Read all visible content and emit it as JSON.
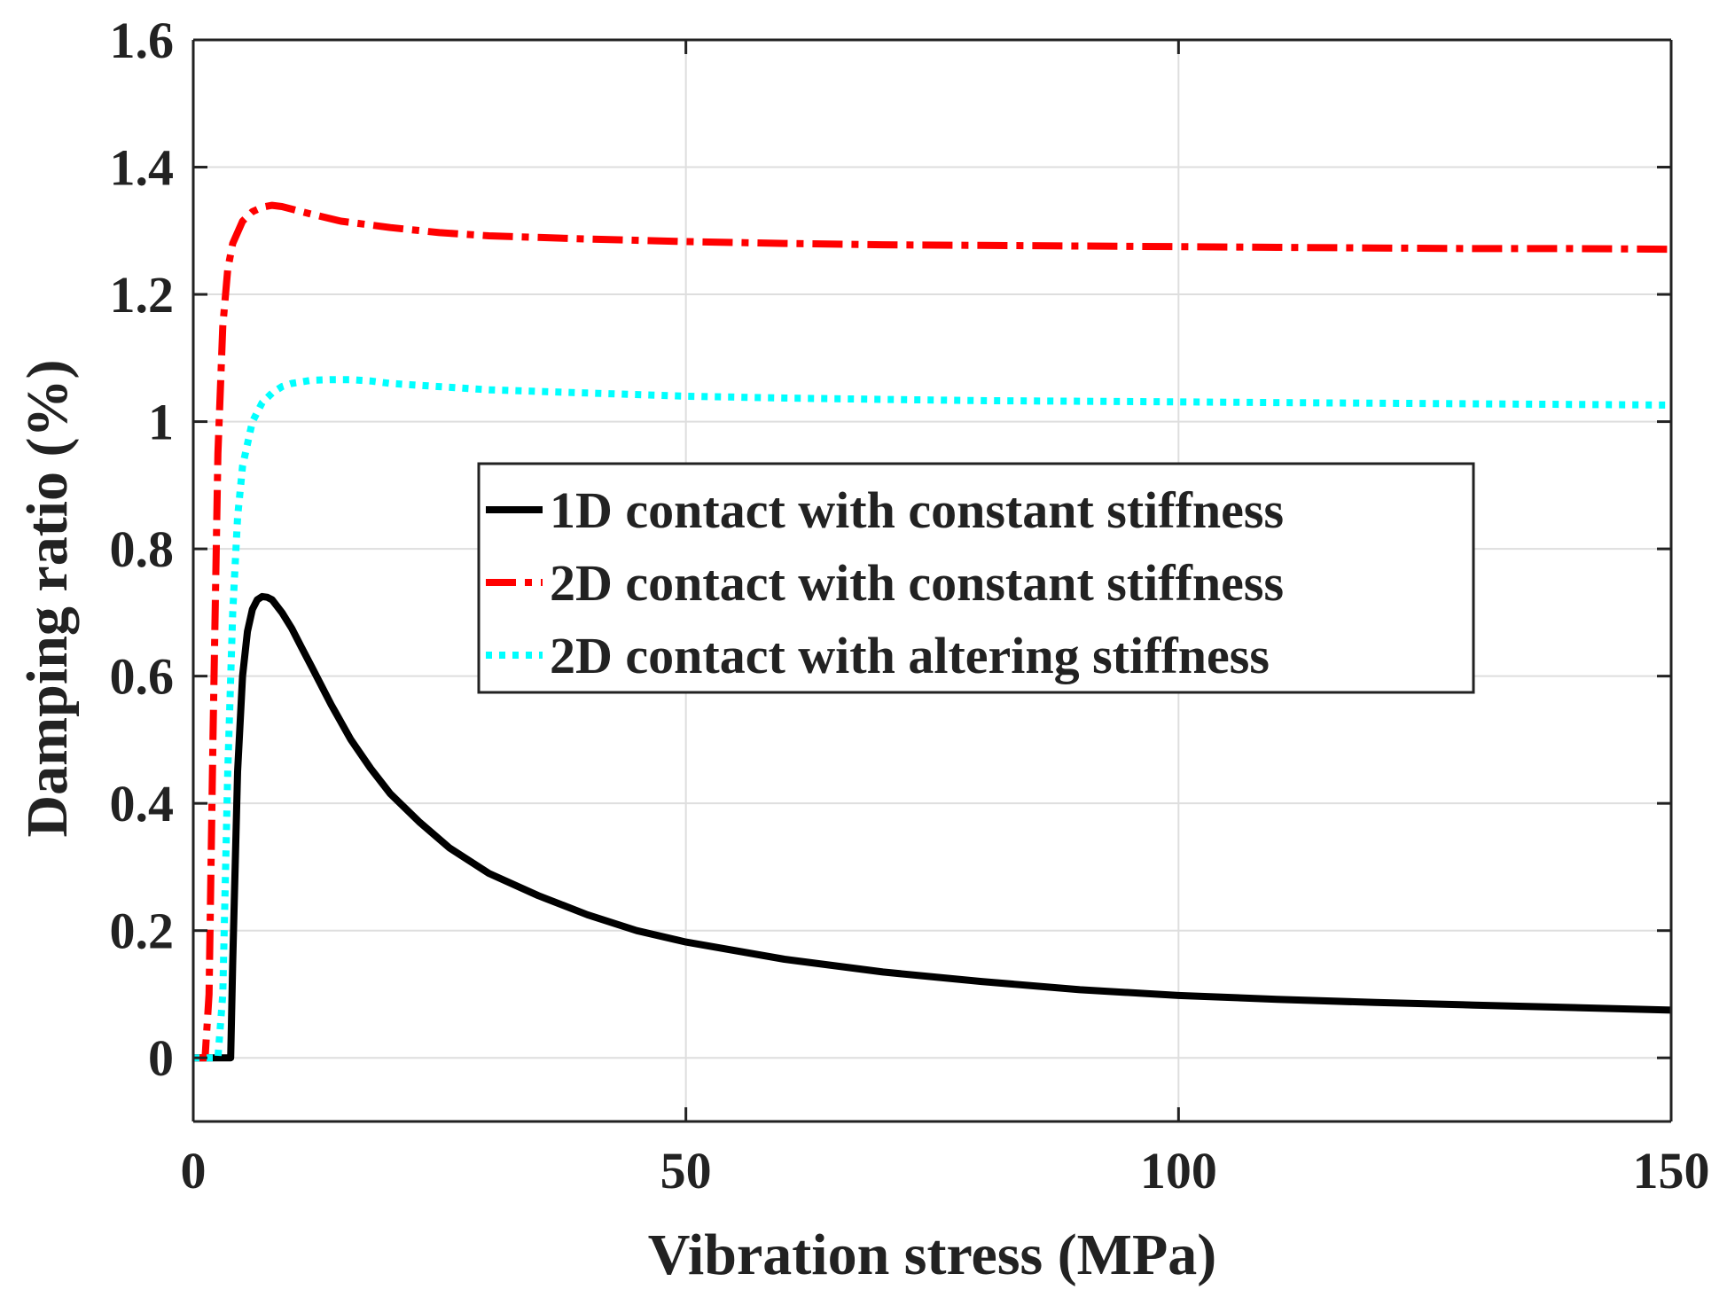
{
  "chart_data": {
    "type": "line",
    "title": "",
    "xlabel": "Vibration stress (MPa)",
    "ylabel": "Damping ratio (%)",
    "xlim": [
      0,
      150
    ],
    "ylim": [
      -0.1,
      1.6
    ],
    "xticks": [
      0,
      50,
      100,
      150
    ],
    "xtick_labels": [
      "0",
      "50",
      "100",
      "150"
    ],
    "yticks": [
      0,
      0.2,
      0.4,
      0.6,
      0.8,
      1,
      1.2,
      1.4,
      1.6
    ],
    "ytick_labels": [
      "0",
      "0.2",
      "0.4",
      "0.6",
      "0.8",
      "1",
      "1.2",
      "1.4",
      "1.6"
    ],
    "grid": true,
    "legend_position": "center-right",
    "series": [
      {
        "name": "1D contact with constant stiffness",
        "color": "#000000",
        "style": "solid",
        "x": [
          0,
          3.8,
          4.0,
          4.5,
          5.0,
          5.5,
          6.0,
          6.5,
          7.0,
          7.5,
          8.0,
          9.0,
          10,
          11,
          12,
          14,
          16,
          18,
          20,
          23,
          26,
          30,
          35,
          40,
          45,
          50,
          60,
          70,
          80,
          90,
          100,
          110,
          120,
          130,
          140,
          150
        ],
        "y": [
          0,
          0,
          0.15,
          0.45,
          0.6,
          0.67,
          0.705,
          0.72,
          0.725,
          0.724,
          0.72,
          0.7,
          0.675,
          0.645,
          0.615,
          0.555,
          0.5,
          0.455,
          0.415,
          0.37,
          0.33,
          0.29,
          0.255,
          0.225,
          0.2,
          0.182,
          0.155,
          0.135,
          0.12,
          0.107,
          0.098,
          0.092,
          0.087,
          0.083,
          0.079,
          0.075
        ]
      },
      {
        "name": "2D contact with constant stiffness",
        "color": "#ff0000",
        "style": "dashdot",
        "x": [
          0,
          1.2,
          1.6,
          2.0,
          2.5,
          3.0,
          3.5,
          4.0,
          5.0,
          6.0,
          7.0,
          8.0,
          9.0,
          10,
          12,
          15,
          20,
          25,
          30,
          40,
          50,
          60,
          70,
          80,
          90,
          100,
          110,
          120,
          130,
          140,
          150
        ],
        "y": [
          0,
          0,
          0.1,
          0.5,
          0.95,
          1.15,
          1.24,
          1.28,
          1.315,
          1.33,
          1.337,
          1.34,
          1.338,
          1.334,
          1.326,
          1.315,
          1.305,
          1.297,
          1.292,
          1.287,
          1.283,
          1.28,
          1.278,
          1.277,
          1.276,
          1.275,
          1.274,
          1.273,
          1.272,
          1.272,
          1.271
        ]
      },
      {
        "name": "2D contact with altering stiffness",
        "color": "#00ffff",
        "style": "dotted",
        "x": [
          0,
          2.5,
          3.0,
          3.5,
          4.0,
          4.5,
          5.0,
          6.0,
          7.0,
          8.0,
          9.0,
          10,
          12,
          14,
          16,
          18,
          20,
          25,
          30,
          40,
          50,
          60,
          70,
          80,
          90,
          100,
          110,
          120,
          130,
          140,
          150
        ],
        "y": [
          0,
          0,
          0.1,
          0.45,
          0.7,
          0.85,
          0.93,
          1.0,
          1.03,
          1.045,
          1.055,
          1.06,
          1.065,
          1.066,
          1.066,
          1.064,
          1.06,
          1.055,
          1.05,
          1.045,
          1.04,
          1.037,
          1.035,
          1.033,
          1.032,
          1.031,
          1.03,
          1.029,
          1.028,
          1.027,
          1.026
        ]
      }
    ]
  }
}
